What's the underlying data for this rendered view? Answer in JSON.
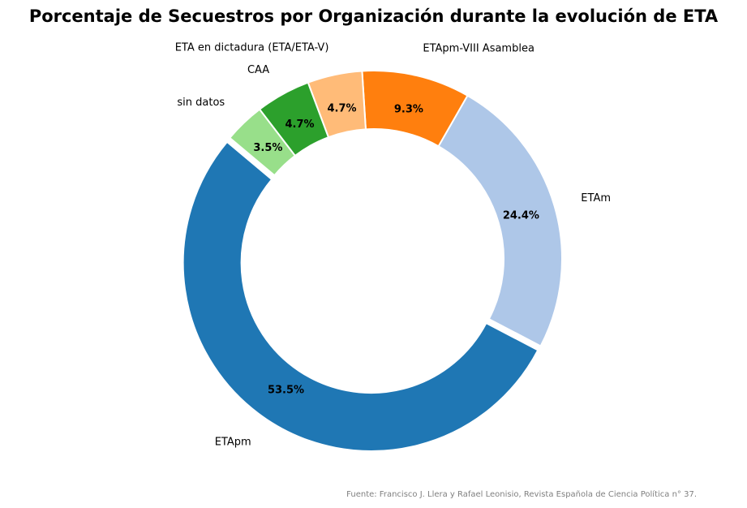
{
  "chart_data": {
    "type": "pie",
    "title": "Porcentaje de Secuestros por Organización durante la evolución de ETA",
    "donut": true,
    "start_angle_deg": 140,
    "direction": "counterclockwise",
    "slices": [
      {
        "label": "ETApm",
        "value": 53.5,
        "pct_label": "53.5%",
        "color": "#1f77b4"
      },
      {
        "label": "ETAm",
        "value": 24.4,
        "pct_label": "24.4%",
        "color": "#aec7e8"
      },
      {
        "label": "ETApm-VIII Asamblea",
        "value": 9.3,
        "pct_label": "9.3%",
        "color": "#ff7f0e"
      },
      {
        "label": "ETA en dictadura (ETA/ETA-V)",
        "value": 4.7,
        "pct_label": "4.7%",
        "color": "#ffbb78"
      },
      {
        "label": "CAA",
        "value": 4.7,
        "pct_label": "4.7%",
        "color": "#2ca02c"
      },
      {
        "label": "sin datos",
        "value": 3.5,
        "pct_label": "3.5%",
        "color": "#98df8a"
      }
    ]
  },
  "source_note": "Fuente: Francisco J. Llera y Rafael Leonisio, Revista Española de Ciencia Política n° 37."
}
